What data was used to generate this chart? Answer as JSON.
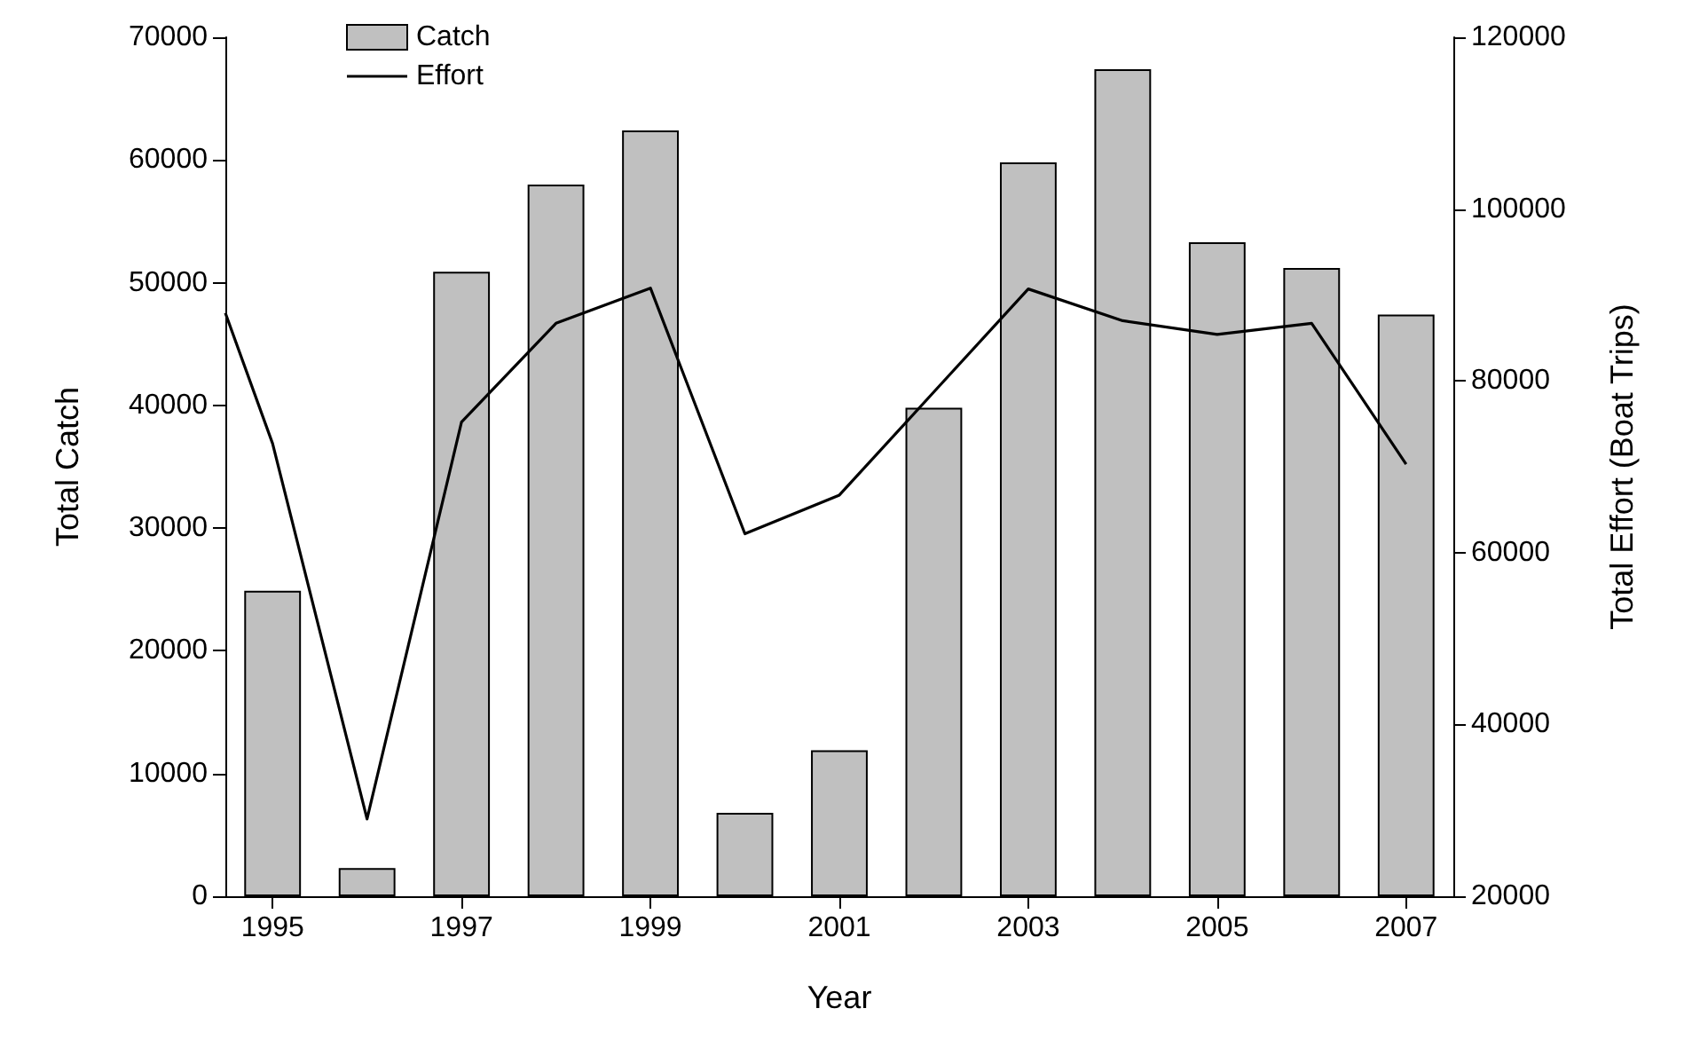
{
  "chart_data": {
    "type": "bar",
    "xlabel": "Year",
    "ylabel": "Total Catch",
    "y2label": "Total Effort (Boat Trips)",
    "xlim": [
      1994.5,
      2007.5
    ],
    "xticks": [
      1995,
      1997,
      1999,
      2001,
      2003,
      2005,
      2007
    ],
    "ylim": [
      0,
      70000
    ],
    "yticks": [
      0,
      10000,
      20000,
      30000,
      40000,
      50000,
      60000,
      70000
    ],
    "y2lim": [
      20000,
      120000
    ],
    "y2ticks": [
      20000,
      40000,
      60000,
      80000,
      100000,
      120000
    ],
    "grid": false,
    "legend": "top left",
    "marker": "none",
    "line_style": "solid",
    "series": [
      {
        "name": "Catch",
        "color": "#c0c0c0",
        "x": [
          1995,
          1996,
          1997,
          1998,
          1999,
          2000,
          2001,
          2002,
          2003,
          2004,
          2005,
          2006,
          2007
        ],
        "values": [
          24900,
          2300,
          50900,
          58000,
          62400,
          6800,
          11900,
          39800,
          59800,
          67400,
          53300,
          51200,
          47400
        ]
      },
      {
        "name": "Effort",
        "type": "line",
        "axis": "y2",
        "color": "#000000",
        "x": [
          1994.5,
          1995,
          1996,
          1997,
          1998,
          1999,
          2000,
          2001,
          2002,
          2003,
          2004,
          2005,
          2006,
          2007
        ],
        "values": [
          87900,
          72700,
          29000,
          75200,
          86700,
          90800,
          62200,
          66700,
          78700,
          90700,
          87000,
          85400,
          86700,
          70300
        ]
      }
    ]
  }
}
